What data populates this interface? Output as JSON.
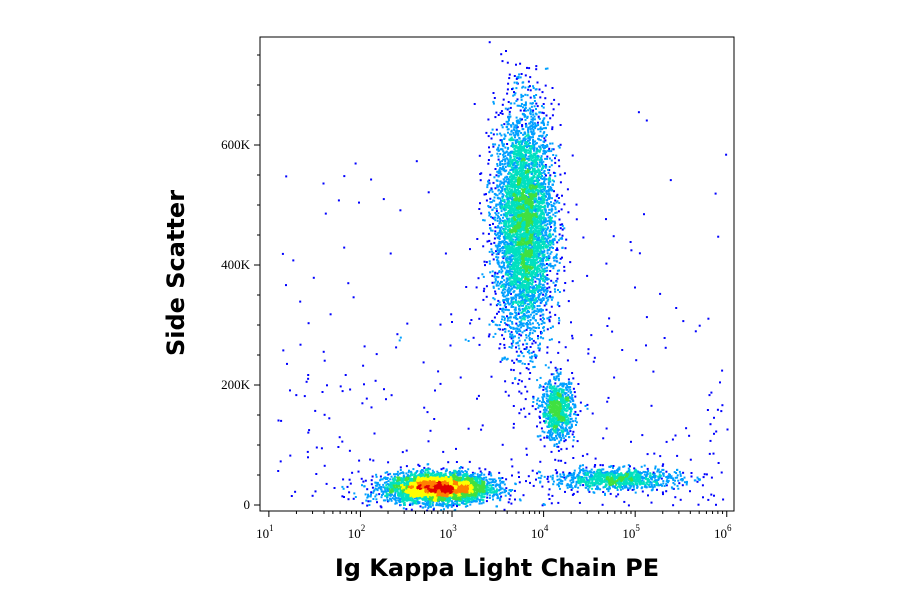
{
  "chart_data": {
    "type": "scatter",
    "subtype": "flow-cytometry-density-dot-plot",
    "title": "",
    "xlabel": "Ig Kappa Light Chain PE",
    "ylabel": "Side Scatter",
    "x_scale": "log",
    "y_scale": "linear",
    "xlim": [
      8,
      1200000
    ],
    "ylim": [
      -10000,
      780000
    ],
    "x_ticks": [
      {
        "value": 10,
        "base": "10",
        "exp": "1"
      },
      {
        "value": 100,
        "base": "10",
        "exp": "2"
      },
      {
        "value": 1000,
        "base": "10",
        "exp": "3"
      },
      {
        "value": 10000,
        "base": "10",
        "exp": "4"
      },
      {
        "value": 100000,
        "base": "10",
        "exp": "5"
      },
      {
        "value": 1000000,
        "base": "10",
        "exp": "6"
      }
    ],
    "y_ticks": [
      {
        "value": 0,
        "label": "0"
      },
      {
        "value": 200000,
        "label": "200K"
      },
      {
        "value": 400000,
        "label": "400K"
      },
      {
        "value": 600000,
        "label": "600K"
      }
    ],
    "grid": false,
    "legend": "none",
    "color_scale": [
      "#0000ff",
      "#00a0ff",
      "#00e0c0",
      "#40e040",
      "#ffff00",
      "#ff8000",
      "#e00000"
    ],
    "populations": [
      {
        "name_visible": false,
        "x_center": 700,
        "y_center": 30000,
        "x_log_sd": 0.28,
        "y_sd": 12000,
        "count": 4200
      },
      {
        "name_visible": false,
        "x_center": 6000,
        "y_center": 470000,
        "x_log_sd": 0.16,
        "y_sd": 95000,
        "count": 5200
      },
      {
        "name_visible": false,
        "x_center": 14000,
        "y_center": 160000,
        "x_log_sd": 0.09,
        "y_sd": 25000,
        "count": 900
      },
      {
        "name_visible": false,
        "x_center": 60000,
        "y_center": 45000,
        "x_log_sd": 0.35,
        "y_sd": 9000,
        "count": 1000
      }
    ]
  }
}
